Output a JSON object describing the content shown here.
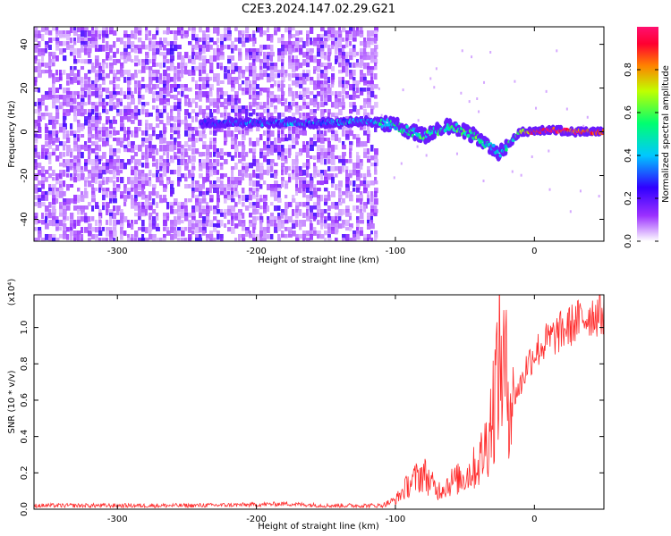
{
  "title": "C2E3.2024.147.02.29.G21",
  "chart_data": [
    {
      "type": "heatmap",
      "xlabel": "Height of straight line (km)",
      "ylabel": "Frequency (Hz)",
      "xlim": [
        -360,
        50
      ],
      "ylim": [
        -50,
        48
      ],
      "xticks": [
        -300,
        -200,
        -100,
        0
      ],
      "xtick_labels": [
        "-300",
        "-200",
        "-100",
        "0"
      ],
      "yticks": [
        -40,
        -20,
        0,
        20,
        40
      ],
      "ytick_labels": [
        "-40",
        "-20",
        "0",
        "20",
        "40"
      ],
      "colorbar": {
        "label": "Normalized spectral amplitude",
        "range": [
          0,
          1
        ],
        "ticks": [
          0.0,
          0.2,
          0.4,
          0.6,
          0.8
        ],
        "tick_labels": [
          "0.0",
          "0.2",
          "0.4",
          "0.6",
          "0.8"
        ],
        "colormap": "white-purple-blue-cyan-green-yellow-red-pink"
      },
      "noise_region_x": [
        -360,
        -115
      ],
      "signal_trace": [
        {
          "x": -240,
          "y": 4,
          "amp": 0.25
        },
        {
          "x": -200,
          "y": 4,
          "amp": 0.3
        },
        {
          "x": -150,
          "y": 4,
          "amp": 0.35
        },
        {
          "x": -120,
          "y": 5,
          "amp": 0.4
        },
        {
          "x": -100,
          "y": 3,
          "amp": 0.45
        },
        {
          "x": -80,
          "y": -2,
          "amp": 0.5
        },
        {
          "x": -60,
          "y": 3,
          "amp": 0.5
        },
        {
          "x": -40,
          "y": -3,
          "amp": 0.55
        },
        {
          "x": -25,
          "y": -10,
          "amp": 0.35
        },
        {
          "x": -10,
          "y": 0,
          "amp": 0.65
        },
        {
          "x": 0,
          "y": 0,
          "amp": 0.9
        },
        {
          "x": 10,
          "y": 1,
          "amp": 0.95
        },
        {
          "x": 30,
          "y": 0,
          "amp": 0.9
        },
        {
          "x": 50,
          "y": 0,
          "amp": 0.9
        }
      ]
    },
    {
      "type": "line",
      "xlabel": "Height of straight line (km)",
      "ylabel": "SNR (10 * v/v)",
      "scale_label": "(x10⁴)",
      "xlim": [
        -360,
        50
      ],
      "ylim": [
        0,
        1.18
      ],
      "xticks": [
        -300,
        -200,
        -100,
        0
      ],
      "xtick_labels": [
        "-300",
        "-200",
        "-100",
        "0"
      ],
      "yticks": [
        0.0,
        0.2,
        0.4,
        0.6,
        0.8,
        1.0
      ],
      "ytick_labels": [
        "0.0",
        "0.2",
        "0.4",
        "0.6",
        "0.8",
        "1.0"
      ],
      "color": "#ff2a2a",
      "series": [
        {
          "x": [
            -360,
            -300,
            -250,
            -200,
            -180,
            -150,
            -120,
            -110,
            -100,
            -90,
            -80,
            -70,
            -60,
            -50,
            -40,
            -35,
            -30,
            -25,
            -20,
            -15,
            -10,
            -5,
            0,
            10,
            20,
            30,
            40,
            50
          ],
          "y": [
            0.02,
            0.02,
            0.02,
            0.025,
            0.03,
            0.02,
            0.02,
            0.02,
            0.05,
            0.14,
            0.2,
            0.1,
            0.15,
            0.18,
            0.25,
            0.35,
            0.55,
            0.85,
            0.7,
            0.62,
            0.68,
            0.8,
            0.86,
            0.93,
            0.98,
            1.03,
            1.07,
            1.08
          ]
        }
      ]
    }
  ]
}
